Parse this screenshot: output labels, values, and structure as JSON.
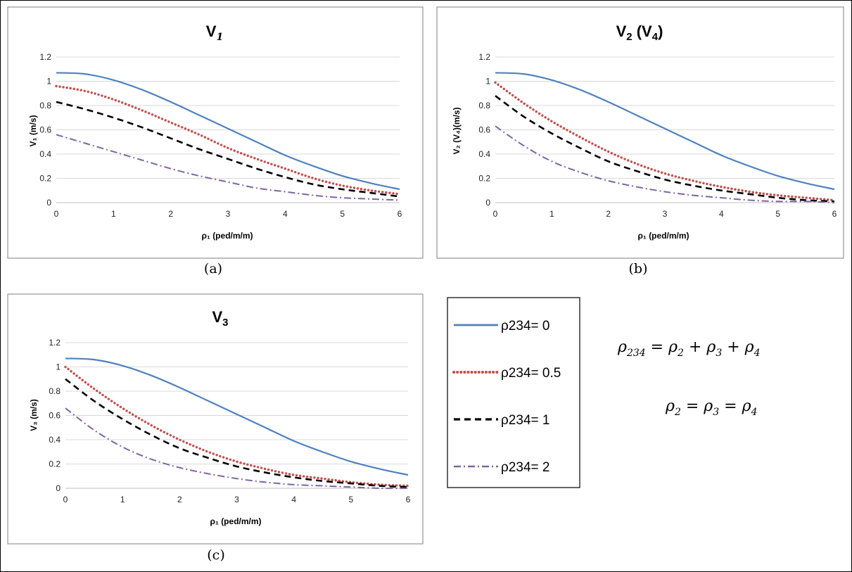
{
  "colors": {
    "series_0": "#4f81bd",
    "series_05": "#c0504d",
    "series_1": "#000000",
    "series_2": "#8064a2",
    "gridline": "#d9d9d9",
    "panel_border": "#7f7f7f"
  },
  "chart_data": [
    {
      "type": "line",
      "title": "V",
      "title_sub": "1",
      "title_suffix": "",
      "xlabel": "ρ₁ (ped/m/m)",
      "ylabel": "V₁ (m/s)",
      "caption": "(a)",
      "xlim": [
        0,
        6
      ],
      "ylim": [
        0,
        1.2
      ],
      "x_ticks": [
        "0",
        "1",
        "2",
        "3",
        "4",
        "5",
        "6"
      ],
      "y_ticks": [
        "0",
        "0.2",
        "0.4",
        "0.6",
        "0.8",
        "1",
        "1.2"
      ],
      "grid": "horizontal",
      "x": [
        0,
        0.5,
        1,
        1.5,
        2,
        2.5,
        3,
        3.5,
        4,
        4.5,
        5,
        5.5,
        6
      ],
      "series": [
        {
          "name": "ρ234= 0",
          "values": [
            1.07,
            1.06,
            1.01,
            0.93,
            0.83,
            0.72,
            0.61,
            0.5,
            0.39,
            0.3,
            0.22,
            0.16,
            0.11
          ]
        },
        {
          "name": "ρ234= 0.5",
          "values": [
            0.96,
            0.92,
            0.85,
            0.76,
            0.66,
            0.56,
            0.45,
            0.36,
            0.28,
            0.2,
            0.14,
            0.1,
            0.07
          ]
        },
        {
          "name": "ρ234= 1",
          "values": [
            0.83,
            0.77,
            0.7,
            0.62,
            0.53,
            0.44,
            0.36,
            0.28,
            0.21,
            0.15,
            0.11,
            0.08,
            0.05
          ]
        },
        {
          "name": "ρ234= 2",
          "values": [
            0.56,
            0.49,
            0.42,
            0.35,
            0.28,
            0.22,
            0.17,
            0.12,
            0.09,
            0.06,
            0.04,
            0.03,
            0.02
          ]
        }
      ]
    },
    {
      "type": "line",
      "title": "V",
      "title_sub": "2",
      "title_suffix": " (V",
      "title_suffix_sub": "4",
      "title_suffix_end": ")",
      "xlabel": "ρ₁ (ped/m/m)",
      "ylabel": "V₂ (V₄)(m/s)",
      "caption": "(b)",
      "xlim": [
        0,
        6
      ],
      "ylim": [
        0,
        1.2
      ],
      "x_ticks": [
        "0",
        "1",
        "2",
        "3",
        "4",
        "5",
        "6"
      ],
      "y_ticks": [
        "0",
        "0.2",
        "0.4",
        "0.6",
        "0.8",
        "1",
        "1.2"
      ],
      "grid": "horizontal",
      "x": [
        0,
        0.5,
        1,
        1.5,
        2,
        2.5,
        3,
        3.5,
        4,
        4.5,
        5,
        5.5,
        6
      ],
      "series": [
        {
          "name": "ρ234= 0",
          "values": [
            1.07,
            1.06,
            1.01,
            0.93,
            0.83,
            0.72,
            0.61,
            0.5,
            0.39,
            0.3,
            0.22,
            0.16,
            0.11
          ]
        },
        {
          "name": "ρ234= 0.5",
          "values": [
            0.99,
            0.82,
            0.67,
            0.54,
            0.42,
            0.32,
            0.24,
            0.18,
            0.13,
            0.09,
            0.06,
            0.04,
            0.02
          ]
        },
        {
          "name": "ρ234= 1",
          "values": [
            0.88,
            0.71,
            0.57,
            0.45,
            0.34,
            0.26,
            0.19,
            0.14,
            0.1,
            0.07,
            0.04,
            0.02,
            0.01
          ]
        },
        {
          "name": "ρ234= 2",
          "values": [
            0.63,
            0.47,
            0.34,
            0.25,
            0.18,
            0.13,
            0.09,
            0.06,
            0.04,
            0.02,
            0.01,
            0.01,
            0.0
          ]
        }
      ]
    },
    {
      "type": "line",
      "title": "V",
      "title_sub": "3",
      "title_suffix": "",
      "xlabel": "ρ₁ (ped/m/m)",
      "ylabel": "V₃ (m/s)",
      "caption": "(c)",
      "xlim": [
        0,
        6
      ],
      "ylim": [
        0,
        1.2
      ],
      "x_ticks": [
        "0",
        "1",
        "2",
        "3",
        "4",
        "5",
        "6"
      ],
      "y_ticks": [
        "0",
        "0.2",
        "0.4",
        "0.6",
        "0.8",
        "1",
        "1.2"
      ],
      "grid": "horizontal",
      "x": [
        0,
        0.5,
        1,
        1.5,
        2,
        2.5,
        3,
        3.5,
        4,
        4.5,
        5,
        5.5,
        6
      ],
      "series": [
        {
          "name": "ρ234= 0",
          "values": [
            1.07,
            1.06,
            1.01,
            0.93,
            0.83,
            0.72,
            0.61,
            0.5,
            0.39,
            0.3,
            0.22,
            0.16,
            0.11
          ]
        },
        {
          "name": "ρ234= 0.5",
          "values": [
            1.0,
            0.82,
            0.66,
            0.52,
            0.4,
            0.3,
            0.22,
            0.16,
            0.11,
            0.08,
            0.05,
            0.03,
            0.02
          ]
        },
        {
          "name": "ρ234= 1",
          "values": [
            0.9,
            0.72,
            0.57,
            0.44,
            0.33,
            0.25,
            0.18,
            0.13,
            0.09,
            0.06,
            0.04,
            0.02,
            0.01
          ]
        },
        {
          "name": "ρ234= 2",
          "values": [
            0.66,
            0.48,
            0.34,
            0.24,
            0.17,
            0.12,
            0.08,
            0.05,
            0.03,
            0.02,
            0.01,
            0.0,
            0.0
          ]
        }
      ]
    }
  ],
  "legend": {
    "entries": [
      {
        "label": "ρ234= 0",
        "style": "solid",
        "color_key": "series_0"
      },
      {
        "label": "ρ234= 0.5",
        "style": "dotted",
        "color_key": "series_05"
      },
      {
        "label": "ρ234= 1",
        "style": "dashed",
        "color_key": "series_1"
      },
      {
        "label": "ρ234= 2",
        "style": "dashdot",
        "color_key": "series_2"
      }
    ]
  },
  "equations": {
    "eq1": {
      "lhs": "ρ",
      "lhs_sub": "234",
      "t1": "ρ",
      "t1_sub": "2",
      "t2": "ρ",
      "t2_sub": "3",
      "t3": "ρ",
      "t3_sub": "4",
      "op1": " = ",
      "op2": " + ",
      "op3": " + "
    },
    "eq2": {
      "a": "ρ",
      "a_sub": "2",
      "b": "ρ",
      "b_sub": "3",
      "c": "ρ",
      "c_sub": "4",
      "op": " = "
    }
  }
}
